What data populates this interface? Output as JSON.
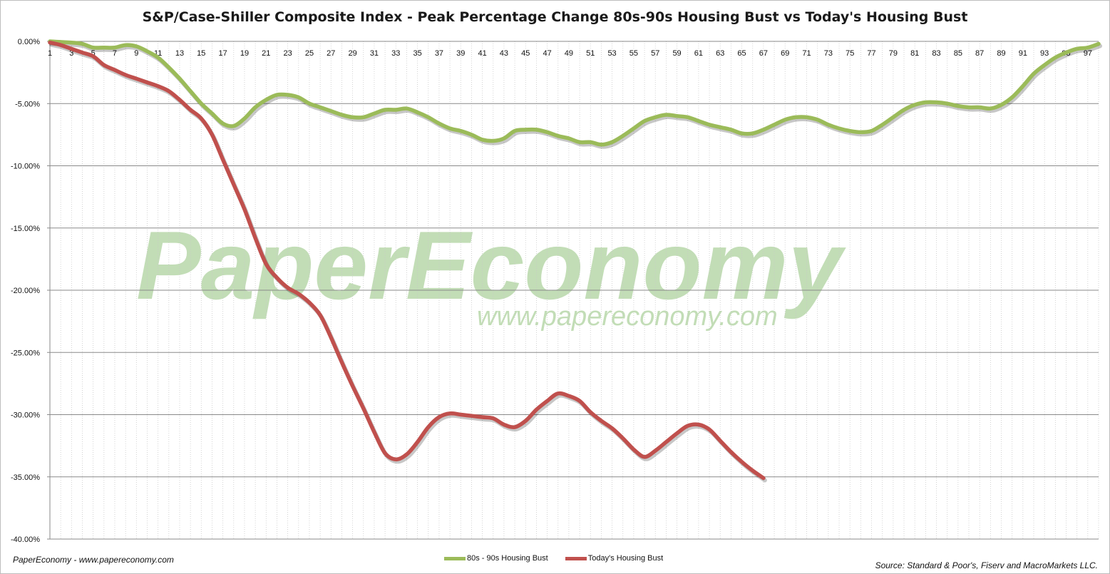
{
  "chart_data": {
    "type": "line",
    "title": "S&P/Case-Shiller Composite Index - Peak Percentage Change 80s-90s Housing Bust vs Today's Housing Bust",
    "xlabel": "",
    "ylabel": "",
    "x_range": [
      1,
      98
    ],
    "x_tick_labels": [
      "1",
      "3",
      "5",
      "7",
      "9",
      "11",
      "13",
      "15",
      "17",
      "19",
      "21",
      "23",
      "25",
      "27",
      "29",
      "31",
      "33",
      "35",
      "37",
      "39",
      "41",
      "43",
      "45",
      "47",
      "49",
      "51",
      "53",
      "55",
      "57",
      "59",
      "61",
      "63",
      "65",
      "67",
      "69",
      "71",
      "73",
      "75",
      "77",
      "79",
      "81",
      "83",
      "85",
      "87",
      "89",
      "91",
      "93",
      "95",
      "97"
    ],
    "ylim": [
      -40,
      0
    ],
    "y_ticks": [
      0,
      -5,
      -10,
      -15,
      -20,
      -25,
      -30,
      -35,
      -40
    ],
    "y_tick_labels": [
      "0.00%",
      "-5.00%",
      "-10.00%",
      "-15.00%",
      "-20.00%",
      "-25.00%",
      "-30.00%",
      "-35.00%",
      "-40.00%"
    ],
    "grid": "horizontal major, vertical dotted",
    "legend_position": "bottom",
    "series": [
      {
        "name": "80s - 90s Housing Bust",
        "color": "#9bbb59",
        "values": [
          0,
          -0.05,
          -0.1,
          -0.2,
          -0.5,
          -0.5,
          -0.5,
          -0.3,
          -0.4,
          -0.8,
          -1.3,
          -2.1,
          -3.0,
          -4.0,
          -5.0,
          -5.8,
          -6.6,
          -6.8,
          -6.2,
          -5.3,
          -4.7,
          -4.3,
          -4.3,
          -4.5,
          -5.0,
          -5.3,
          -5.6,
          -5.9,
          -6.1,
          -6.1,
          -5.8,
          -5.5,
          -5.5,
          -5.4,
          -5.7,
          -6.1,
          -6.6,
          -7.0,
          -7.2,
          -7.5,
          -7.9,
          -8.0,
          -7.8,
          -7.2,
          -7.1,
          -7.1,
          -7.3,
          -7.6,
          -7.8,
          -8.1,
          -8.1,
          -8.3,
          -8.1,
          -7.6,
          -7.0,
          -6.4,
          -6.1,
          -5.9,
          -6.0,
          -6.1,
          -6.4,
          -6.7,
          -6.9,
          -7.1,
          -7.4,
          -7.4,
          -7.1,
          -6.7,
          -6.3,
          -6.1,
          -6.1,
          -6.3,
          -6.7,
          -7.0,
          -7.2,
          -7.3,
          -7.2,
          -6.7,
          -6.1,
          -5.5,
          -5.1,
          -4.9,
          -4.9,
          -5.0,
          -5.2,
          -5.3,
          -5.3,
          -5.4,
          -5.1,
          -4.5,
          -3.6,
          -2.6,
          -1.9,
          -1.3,
          -0.9,
          -0.6,
          -0.5,
          -0.2
        ]
      },
      {
        "name": "Today's Housing Bust",
        "color": "#c0504d",
        "values": [
          -0.1,
          -0.3,
          -0.6,
          -0.9,
          -1.2,
          -1.9,
          -2.3,
          -2.7,
          -3.0,
          -3.3,
          -3.6,
          -4.0,
          -4.7,
          -5.5,
          -6.2,
          -7.5,
          -9.5,
          -11.5,
          -13.5,
          -15.8,
          -17.9,
          -19.0,
          -19.8,
          -20.3,
          -21.0,
          -22.0,
          -23.8,
          -25.8,
          -27.7,
          -29.5,
          -31.4,
          -33.1,
          -33.6,
          -33.2,
          -32.2,
          -31.0,
          -30.2,
          -29.9,
          -30.0,
          -30.1,
          -30.2,
          -30.3,
          -30.8,
          -31.0,
          -30.5,
          -29.6,
          -28.9,
          -28.3,
          -28.5,
          -28.9,
          -29.8,
          -30.5,
          -31.1,
          -31.9,
          -32.8,
          -33.4,
          -32.9,
          -32.2,
          -31.5,
          -30.9,
          -30.8,
          -31.2,
          -32.1,
          -33.0,
          -33.8,
          -34.5,
          -35.1
        ]
      }
    ]
  },
  "watermark": {
    "brand": "PaperEconomy",
    "url": "www.papereconomy.com"
  },
  "footer": {
    "left": "PaperEconomy - www.papereconomy.com",
    "source": "Source: Standard & Poor's, Fiserv and MacroMarkets LLC."
  }
}
